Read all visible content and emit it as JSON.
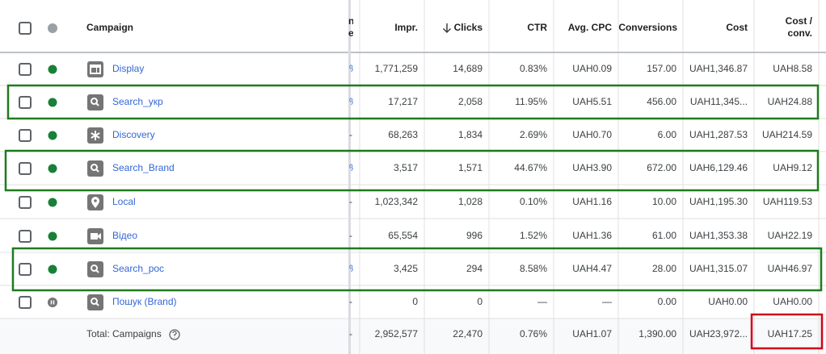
{
  "table": {
    "header": {
      "campaign": "Campaign",
      "partial": [
        "n",
        "e"
      ],
      "impr": "Impr.",
      "clicks": "Clicks",
      "ctr": "CTR",
      "avg_cpc": "Avg. CPC",
      "conversions": "Conversions",
      "cost": "Cost",
      "cost_conv": [
        "Cost /",
        "conv."
      ]
    },
    "rows": [
      {
        "campaign": "Display",
        "partial": "%",
        "impr": "1,771,259",
        "clicks": "14,689",
        "ctr": "0.83%",
        "avg_cpc": "UAH0.09",
        "conversions": "157.00",
        "cost": "UAH1,346.87",
        "cost_conv": "UAH8.58"
      },
      {
        "campaign": "Search_укр",
        "partial": "%",
        "impr": "17,217",
        "clicks": "2,058",
        "ctr": "11.95%",
        "avg_cpc": "UAH5.51",
        "conversions": "456.00",
        "cost": "UAH11,345...",
        "cost_conv": "UAH24.88"
      },
      {
        "campaign": "Discovery",
        "partial": "-",
        "impr": "68,263",
        "clicks": "1,834",
        "ctr": "2.69%",
        "avg_cpc": "UAH0.70",
        "conversions": "6.00",
        "cost": "UAH1,287.53",
        "cost_conv": "UAH214.59"
      },
      {
        "campaign": "Search_Brand",
        "partial": "%",
        "impr": "3,517",
        "clicks": "1,571",
        "ctr": "44.67%",
        "avg_cpc": "UAH3.90",
        "conversions": "672.00",
        "cost": "UAH6,129.46",
        "cost_conv": "UAH9.12"
      },
      {
        "campaign": "Local",
        "partial": "-",
        "impr": "1,023,342",
        "clicks": "1,028",
        "ctr": "0.10%",
        "avg_cpc": "UAH1.16",
        "conversions": "10.00",
        "cost": "UAH1,195.30",
        "cost_conv": "UAH119.53"
      },
      {
        "campaign": "Відео",
        "partial": "-",
        "impr": "65,554",
        "clicks": "996",
        "ctr": "1.52%",
        "avg_cpc": "UAH1.36",
        "conversions": "61.00",
        "cost": "UAH1,353.38",
        "cost_conv": "UAH22.19"
      },
      {
        "campaign": "Search_рос",
        "partial": "%",
        "impr": "3,425",
        "clicks": "294",
        "ctr": "8.58%",
        "avg_cpc": "UAH4.47",
        "conversions": "28.00",
        "cost": "UAH1,315.07",
        "cost_conv": "UAH46.97"
      },
      {
        "campaign": "Пошук (Brand)",
        "partial": "-",
        "impr": "0",
        "clicks": "0",
        "ctr": "—",
        "avg_cpc": "—",
        "conversions": "0.00",
        "cost": "UAH0.00",
        "cost_conv": "UAH0.00"
      }
    ],
    "total": {
      "label": "Total: Campaigns",
      "partial": "-",
      "impr": "2,952,577",
      "clicks": "22,470",
      "ctr": "0.76%",
      "avg_cpc": "UAH1.07",
      "conversions": "1,390.00",
      "cost": "UAH23,972...",
      "cost_conv": "UAH17.25"
    }
  }
}
